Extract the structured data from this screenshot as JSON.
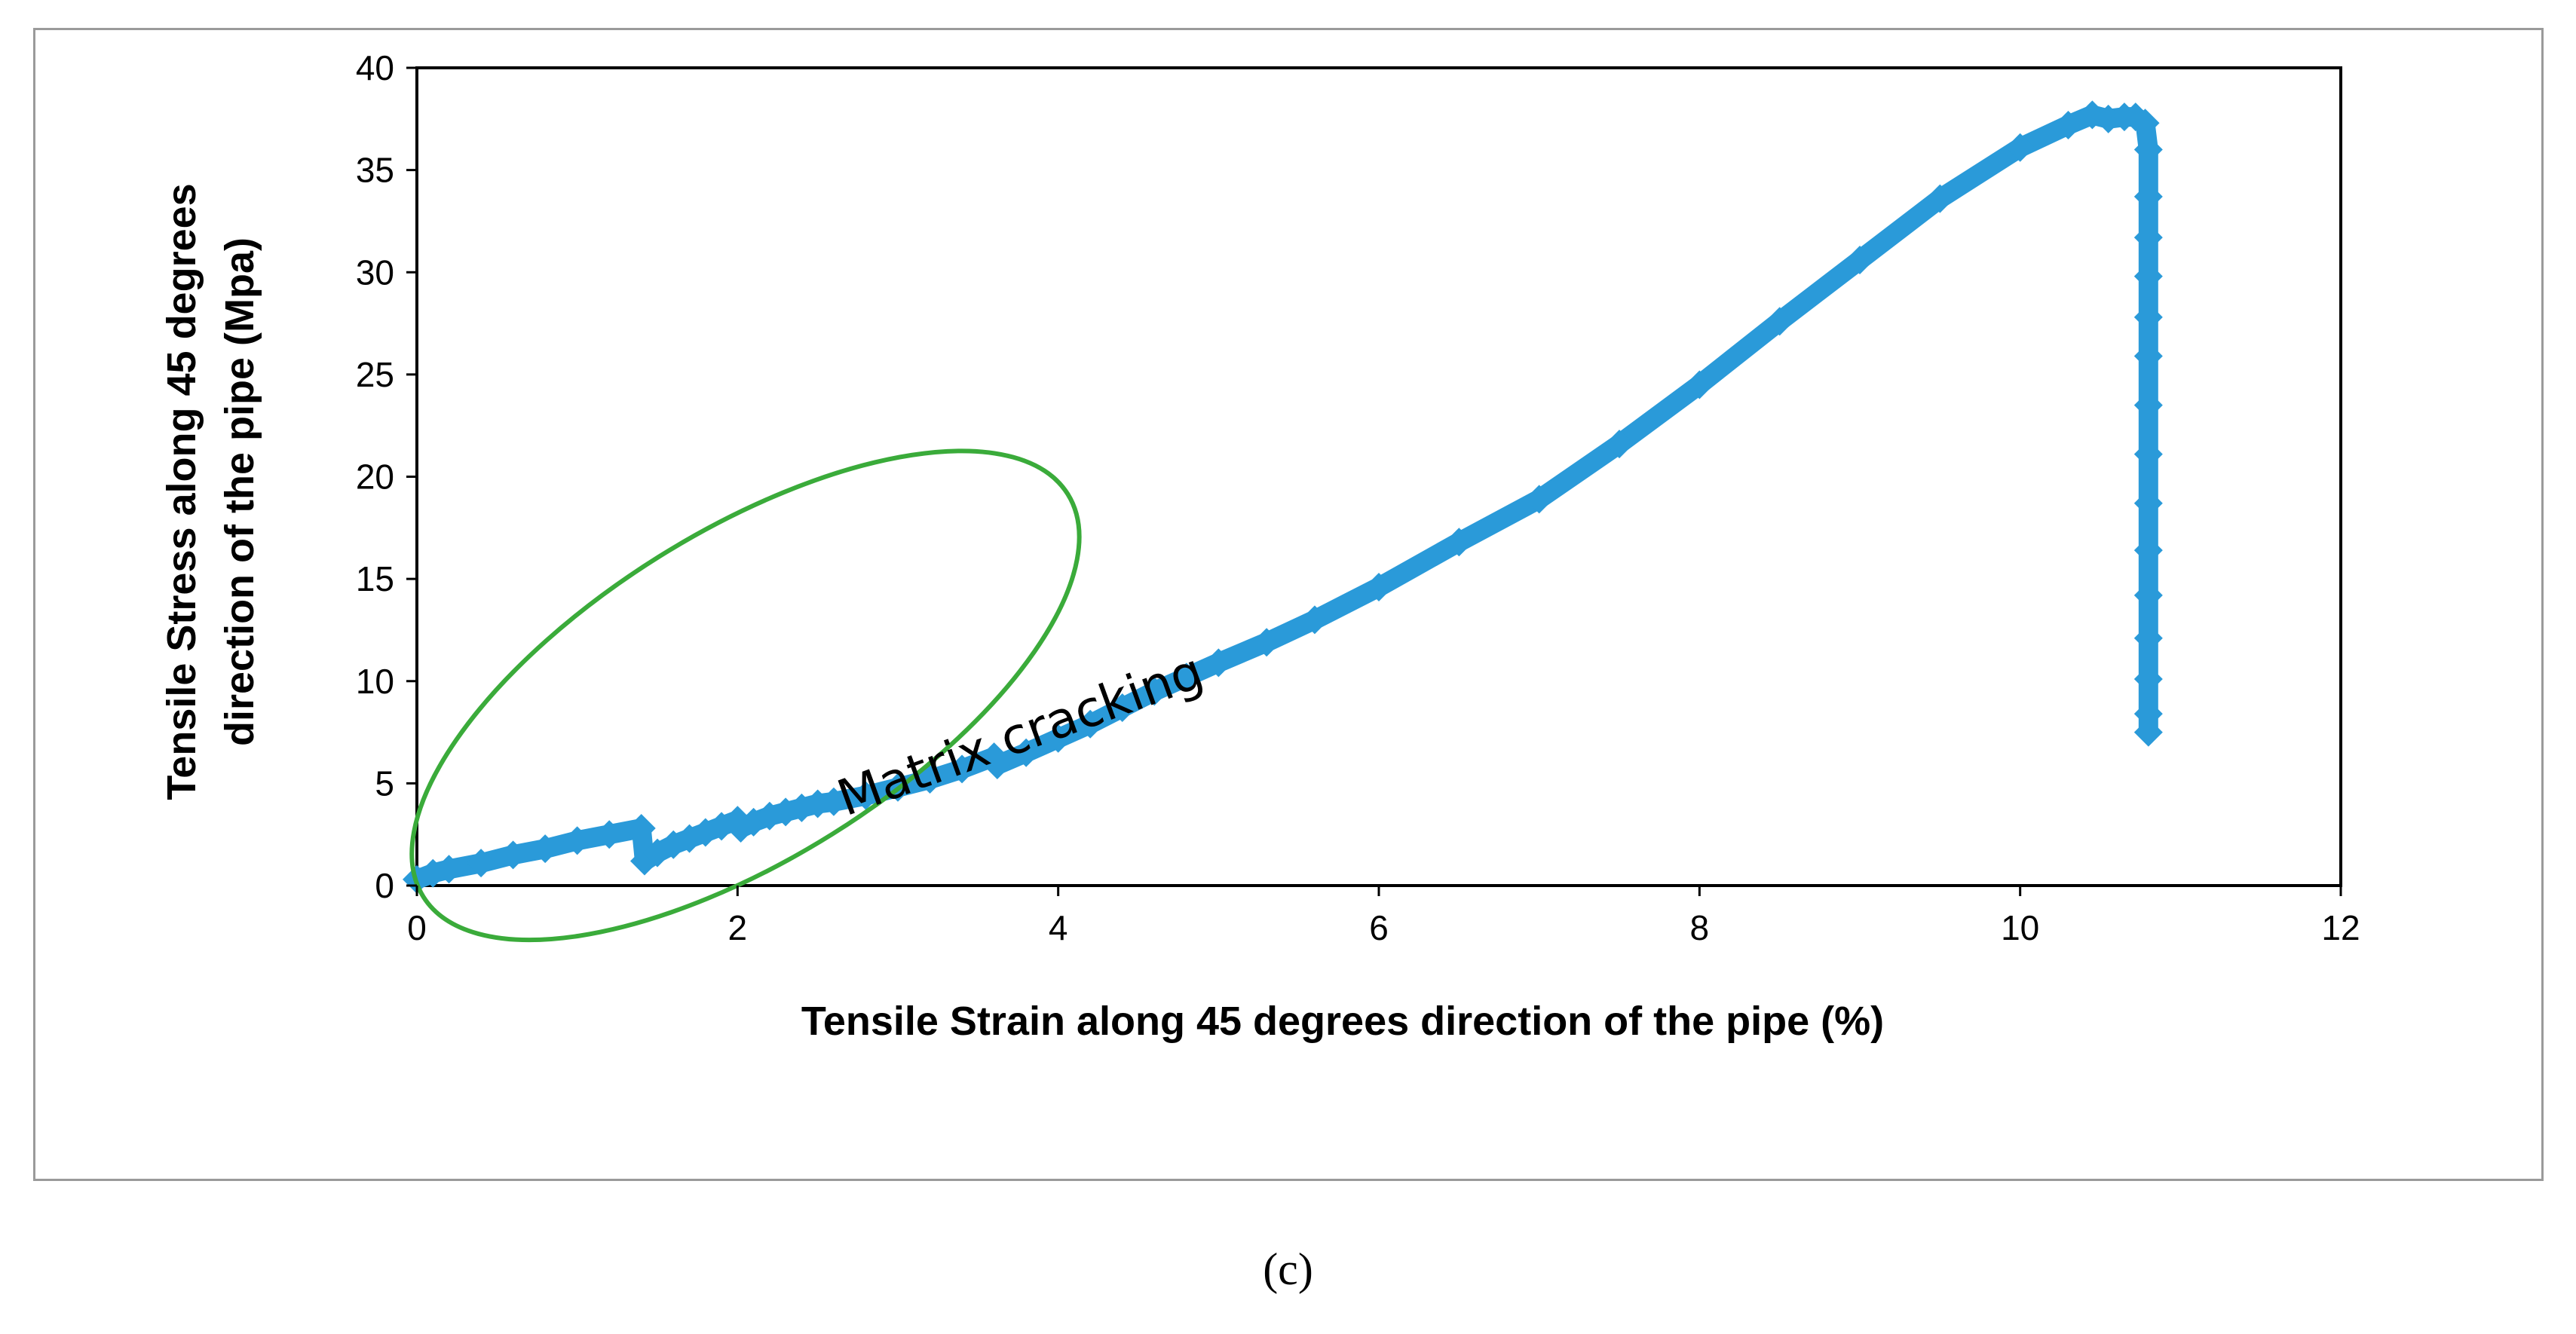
{
  "panel_label": "(c)",
  "chart_data": {
    "type": "scatter",
    "title": "",
    "xlabel": "Tensile Strain along 45 degrees direction of the pipe (%)",
    "ylabel_lines": [
      "Tensile Stress along 45 degrees",
      "direction of the pipe (Mpa)"
    ],
    "xlim": [
      0,
      12
    ],
    "ylim": [
      0,
      40
    ],
    "x_ticks": [
      0,
      2,
      4,
      6,
      8,
      10,
      12
    ],
    "y_ticks": [
      0,
      5,
      10,
      15,
      20,
      25,
      30,
      35,
      40
    ],
    "grid": false,
    "legend": "none",
    "series": [
      {
        "color": "#2a9ad9",
        "marker": "diamond",
        "points": [
          [
            0.0,
            0.3
          ],
          [
            0.1,
            0.6
          ],
          [
            0.2,
            0.8
          ],
          [
            0.4,
            1.1
          ],
          [
            0.6,
            1.5
          ],
          [
            0.8,
            1.8
          ],
          [
            1.0,
            2.2
          ],
          [
            1.2,
            2.5
          ],
          [
            1.4,
            2.8
          ],
          [
            1.42,
            1.2
          ],
          [
            1.5,
            1.6
          ],
          [
            1.6,
            2.0
          ],
          [
            1.7,
            2.3
          ],
          [
            1.8,
            2.6
          ],
          [
            1.9,
            2.9
          ],
          [
            2.0,
            3.2
          ],
          [
            2.02,
            2.8
          ],
          [
            2.1,
            3.1
          ],
          [
            2.2,
            3.4
          ],
          [
            2.3,
            3.6
          ],
          [
            2.4,
            3.8
          ],
          [
            2.5,
            4.0
          ],
          [
            2.6,
            4.1
          ],
          [
            2.8,
            4.4
          ],
          [
            3.0,
            4.8
          ],
          [
            3.2,
            5.2
          ],
          [
            3.4,
            5.7
          ],
          [
            3.6,
            6.3
          ],
          [
            3.62,
            5.9
          ],
          [
            3.8,
            6.5
          ],
          [
            4.0,
            7.2
          ],
          [
            4.2,
            7.9
          ],
          [
            4.4,
            8.7
          ],
          [
            4.6,
            9.5
          ],
          [
            4.8,
            10.2
          ],
          [
            5.0,
            10.9
          ],
          [
            5.3,
            11.9
          ],
          [
            5.6,
            13.0
          ],
          [
            6.0,
            14.6
          ],
          [
            6.5,
            16.8
          ],
          [
            7.0,
            18.9
          ],
          [
            7.5,
            21.6
          ],
          [
            8.0,
            24.5
          ],
          [
            8.5,
            27.6
          ],
          [
            9.0,
            30.6
          ],
          [
            9.5,
            33.6
          ],
          [
            10.0,
            36.1
          ],
          [
            10.3,
            37.2
          ],
          [
            10.45,
            37.7
          ],
          [
            10.55,
            37.5
          ],
          [
            10.65,
            37.6
          ],
          [
            10.72,
            37.6
          ],
          [
            10.78,
            37.3
          ],
          [
            10.8,
            36.0
          ],
          [
            10.8,
            33.7
          ],
          [
            10.8,
            31.7
          ],
          [
            10.8,
            29.8
          ],
          [
            10.8,
            27.8
          ],
          [
            10.8,
            25.9
          ],
          [
            10.8,
            23.5
          ],
          [
            10.8,
            21.1
          ],
          [
            10.8,
            18.7
          ],
          [
            10.8,
            16.4
          ],
          [
            10.8,
            14.2
          ],
          [
            10.8,
            12.1
          ],
          [
            10.8,
            10.1
          ],
          [
            10.8,
            8.4
          ],
          [
            10.8,
            7.5
          ]
        ]
      }
    ],
    "annotation": {
      "text": "Matrix cracking",
      "x": 3.8,
      "y": 6.6,
      "rotation_deg": -20,
      "ellipse": {
        "cx": 2.05,
        "cy": 9.3,
        "rx": 2.37,
        "ry": 8.0,
        "rotation_deg": -32,
        "color": "#3aab3a"
      }
    }
  }
}
